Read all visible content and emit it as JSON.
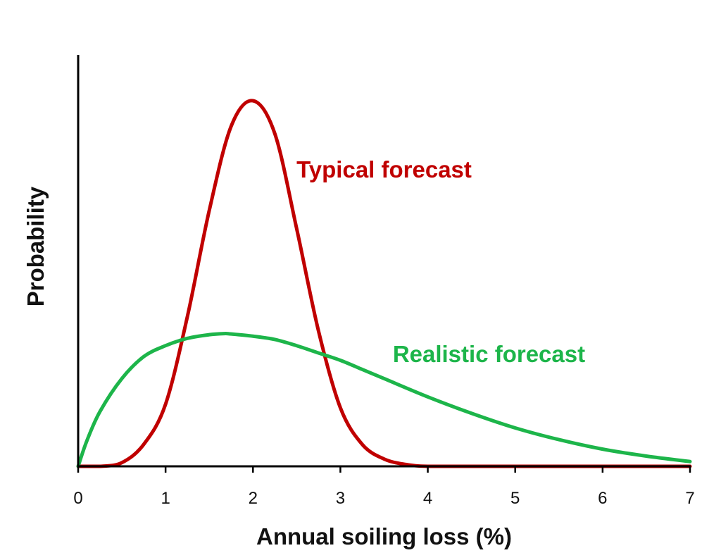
{
  "chart_data": {
    "type": "line",
    "title": "",
    "xlabel": "Annual soiling loss (%)",
    "ylabel": "Probability",
    "xlim": [
      0,
      7
    ],
    "ylim": [
      0,
      1.12
    ],
    "x_ticks": [
      "0",
      "1",
      "2",
      "3",
      "4",
      "5",
      "6",
      "7"
    ],
    "y_ticks": [],
    "grid": false,
    "legend": "none",
    "series": [
      {
        "name": "Typical forecast",
        "color": "#c00000",
        "x": [
          0,
          0.25,
          0.5,
          0.75,
          1.0,
          1.25,
          1.5,
          1.75,
          2.0,
          2.25,
          2.5,
          2.75,
          3.0,
          3.25,
          3.5,
          3.75,
          4.0,
          4.5,
          5.0,
          5.5,
          6.0,
          6.5,
          7.0
        ],
        "y": [
          0.0,
          0.0,
          0.01,
          0.06,
          0.17,
          0.41,
          0.7,
          0.93,
          1.0,
          0.91,
          0.65,
          0.37,
          0.16,
          0.06,
          0.02,
          0.005,
          0.0,
          0.0,
          0.0,
          0.0,
          0.0,
          0.0,
          0.0
        ]
      },
      {
        "name": "Realistic forecast",
        "color": "#1db54a",
        "x": [
          0,
          0.1,
          0.25,
          0.5,
          0.75,
          1.0,
          1.25,
          1.5,
          1.67,
          1.75,
          2.0,
          2.25,
          2.5,
          2.75,
          3.0,
          3.25,
          3.5,
          4.0,
          4.5,
          5.0,
          5.5,
          6.0,
          6.5,
          7.0
        ],
        "y": [
          0.0,
          0.07,
          0.15,
          0.24,
          0.3,
          0.33,
          0.35,
          0.36,
          0.363,
          0.362,
          0.356,
          0.347,
          0.33,
          0.31,
          0.29,
          0.265,
          0.24,
          0.19,
          0.145,
          0.105,
          0.073,
          0.047,
          0.028,
          0.013
        ]
      }
    ],
    "annotations": [
      {
        "text": "Typical forecast",
        "color": "#c00000",
        "x": 3.5,
        "y": 0.79
      },
      {
        "text": "Realistic forecast",
        "color": "#1db54a",
        "x": 4.7,
        "y": 0.285
      }
    ]
  }
}
